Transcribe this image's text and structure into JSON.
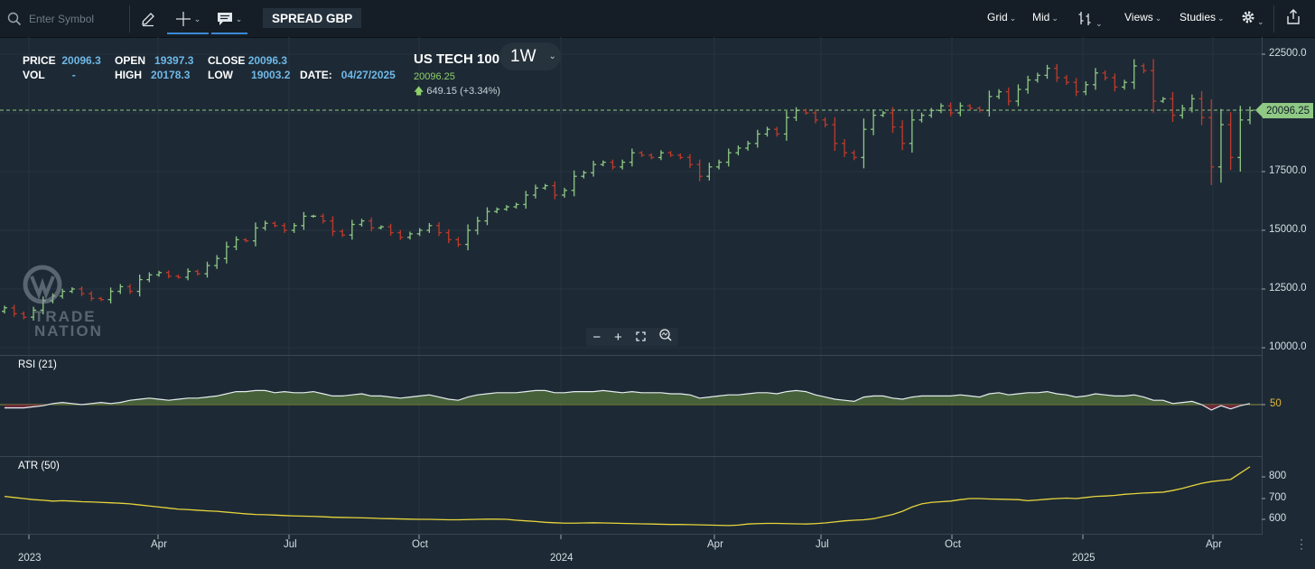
{
  "toolbar": {
    "search_placeholder": "Enter Symbol",
    "spread_label": "SPREAD GBP",
    "right_menu": [
      "Grid",
      "Mid",
      "Views",
      "Studies"
    ],
    "icons": [
      "search-icon",
      "pencil-icon",
      "crosshair-icon",
      "comment-icon",
      "bar-style-icon",
      "gear-icon",
      "export-icon"
    ]
  },
  "ohlc": {
    "price_label": "PRICE",
    "price": "20096.3",
    "vol_label": "VOL",
    "vol": "-",
    "open_label": "OPEN",
    "open": "19397.3",
    "high_label": "HIGH",
    "high": "20178.3",
    "close_label": "CLOSE",
    "close": "20096.3",
    "low_label": "LOW",
    "low": "19003.2",
    "date_label": "DATE:",
    "date": "04/27/2025"
  },
  "instrument": {
    "name": "US TECH 100",
    "timeframe": "1W",
    "last": "20096.25",
    "change": "649.15 (+3.34%)"
  },
  "current_price_tag": "20096.25",
  "brand": {
    "line1": "TRADE",
    "line2": "NATION"
  },
  "colors": {
    "up": "#8fc984",
    "down": "#c0392b",
    "rsi_up": "#4d6b3b",
    "rsi_down": "#7a2a3a",
    "atr": "#e8d43c",
    "accent": "#3a88d6"
  },
  "chart_data": [
    {
      "type": "ohlc",
      "title": "US TECH 100",
      "timeframe": "1W",
      "x_tick_labels": [
        "2023",
        "Apr",
        "Jul",
        "Oct",
        "2024",
        "Apr",
        "Jul",
        "Oct",
        "2025",
        "Apr"
      ],
      "y_tick_labels": [
        "10000.0",
        "12500.0",
        "15000.0",
        "17500.0",
        "20000.0",
        "22500.0"
      ],
      "ylim": [
        10000,
        22500
      ],
      "current_price": 20096.25,
      "close_series": [
        11700,
        11450,
        11300,
        11600,
        12000,
        12200,
        12400,
        12500,
        12300,
        12100,
        12050,
        12400,
        12600,
        12400,
        12900,
        13100,
        13200,
        13050,
        13000,
        13250,
        13150,
        13500,
        13800,
        14300,
        14600,
        14550,
        15100,
        15300,
        15200,
        15000,
        15200,
        15600,
        15600,
        15400,
        14950,
        14800,
        15250,
        15400,
        15100,
        15150,
        14900,
        14700,
        14850,
        15000,
        15200,
        14900,
        14600,
        14400,
        15000,
        15400,
        15800,
        15900,
        16000,
        16100,
        16500,
        16800,
        16900,
        16500,
        16700,
        17300,
        17450,
        17800,
        17900,
        17700,
        17900,
        18300,
        18200,
        18100,
        18300,
        18200,
        18100,
        17800,
        17300,
        17700,
        17900,
        18300,
        18500,
        18700,
        19100,
        19300,
        19100,
        19800,
        20100,
        20000,
        19700,
        19500,
        18700,
        18300,
        18100,
        19300,
        19900,
        20000,
        19400,
        18700,
        19700,
        19900,
        20100,
        20300,
        20000,
        20300,
        20200,
        20100,
        20700,
        20900,
        20500,
        21000,
        21400,
        21600,
        21900,
        21500,
        21300,
        20900,
        21200,
        21700,
        21500,
        21100,
        21300,
        22000,
        21800,
        20500,
        20600,
        19900,
        20200,
        20600,
        19800,
        17700,
        19500,
        18100,
        19700,
        20096
      ]
    },
    {
      "type": "line",
      "title": "RSI (21)",
      "y_tick_labels": [
        "50"
      ],
      "baseline": 50,
      "values": [
        47,
        47,
        47,
        48,
        49,
        51,
        52,
        51,
        50,
        51,
        52,
        51,
        52,
        54,
        55,
        56,
        55,
        54,
        55,
        56,
        56,
        57,
        58,
        60,
        62,
        62,
        63,
        63,
        61,
        62,
        61,
        61,
        62,
        60,
        58,
        58,
        59,
        60,
        58,
        58,
        57,
        56,
        57,
        58,
        59,
        57,
        55,
        54,
        57,
        59,
        60,
        61,
        61,
        61,
        62,
        63,
        63,
        61,
        61,
        62,
        62,
        62,
        63,
        62,
        61,
        62,
        61,
        61,
        61,
        60,
        60,
        59,
        56,
        57,
        58,
        59,
        59,
        60,
        61,
        61,
        60,
        62,
        63,
        62,
        59,
        57,
        55,
        54,
        53,
        57,
        58,
        58,
        56,
        55,
        57,
        58,
        58,
        58,
        58,
        59,
        58,
        57,
        60,
        61,
        59,
        60,
        61,
        61,
        62,
        60,
        59,
        57,
        58,
        60,
        59,
        58,
        58,
        59,
        57,
        54,
        54,
        51,
        52,
        53,
        50,
        45,
        49,
        46,
        49,
        51
      ]
    },
    {
      "type": "line",
      "title": "ATR (50)",
      "y_tick_labels": [
        "600",
        "700",
        "800"
      ],
      "ylim": [
        500,
        860
      ],
      "values": [
        710,
        705,
        700,
        695,
        692,
        688,
        690,
        688,
        685,
        684,
        682,
        680,
        678,
        675,
        670,
        665,
        660,
        655,
        650,
        648,
        645,
        642,
        640,
        636,
        632,
        628,
        625,
        624,
        622,
        620,
        618,
        617,
        616,
        614,
        612,
        611,
        610,
        609,
        608,
        606,
        605,
        604,
        603,
        602,
        602,
        601,
        600,
        600,
        601,
        602,
        603,
        603,
        602,
        598,
        595,
        592,
        588,
        586,
        584,
        584,
        585,
        586,
        585,
        584,
        583,
        582,
        581,
        580,
        579,
        578,
        578,
        577,
        576,
        575,
        574,
        573,
        575,
        580,
        582,
        583,
        583,
        582,
        581,
        580,
        582,
        585,
        590,
        595,
        598,
        600,
        605,
        615,
        625,
        640,
        660,
        675,
        682,
        685,
        688,
        695,
        700,
        700,
        698,
        697,
        696,
        695,
        690,
        693,
        697,
        700,
        702,
        700,
        705,
        710,
        712,
        715,
        720,
        723,
        726,
        728,
        730,
        738,
        748,
        760,
        772,
        780,
        785,
        790,
        820,
        850
      ]
    }
  ]
}
